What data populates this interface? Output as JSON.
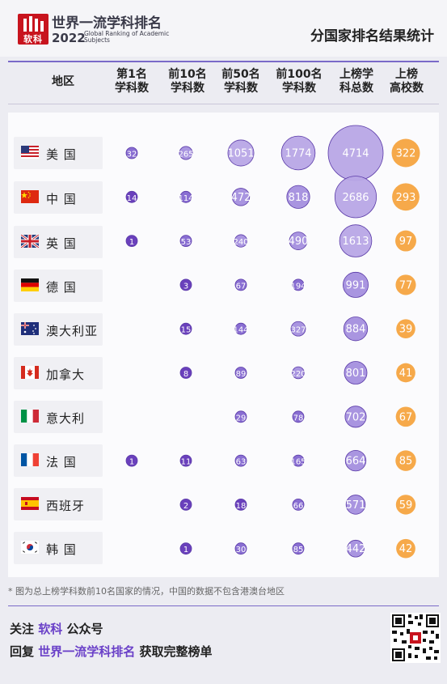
{
  "header": {
    "logo_mark": "软科",
    "logo_title": "世界一流学科排名",
    "logo_year": "2022",
    "logo_subtitle": "Global Ranking of Academic Subjects",
    "page_title": "分国家排名结果统计"
  },
  "table": {
    "columns": [
      {
        "line1": "地区",
        "line2": ""
      },
      {
        "line1": "第1名",
        "line2": "学科数"
      },
      {
        "line1": "前10名",
        "line2": "学科数"
      },
      {
        "line1": "前50名",
        "line2": "学科数"
      },
      {
        "line1": "前100名",
        "line2": "学科数"
      },
      {
        "line1": "上榜学",
        "line2": "科总数"
      },
      {
        "line1": "上榜",
        "line2": "高校数"
      }
    ],
    "rows": [
      {
        "name": "美 国",
        "flag": "us-flag-icon"
      },
      {
        "name": "中 国",
        "flag": "cn-flag-icon"
      },
      {
        "name": "英 国",
        "flag": "uk-flag-icon"
      },
      {
        "name": "德 国",
        "flag": "de-flag-icon"
      },
      {
        "name": "澳大利亚",
        "flag": "au-flag-icon"
      },
      {
        "name": "加拿大",
        "flag": "ca-flag-icon"
      },
      {
        "name": "意大利",
        "flag": "it-flag-icon"
      },
      {
        "name": "法 国",
        "flag": "fr-flag-icon"
      },
      {
        "name": "西班牙",
        "flag": "es-flag-icon"
      },
      {
        "name": "韩 国",
        "flag": "kr-flag-icon"
      }
    ]
  },
  "chart_data": {
    "type": "table",
    "subtype": "bubble-table",
    "categories": [
      "美国",
      "中国",
      "英国",
      "德国",
      "澳大利亚",
      "加拿大",
      "意大利",
      "法国",
      "西班牙",
      "韩国"
    ],
    "series": [
      {
        "name": "第1名学科数",
        "values": [
          32,
          14,
          1,
          null,
          null,
          null,
          null,
          1,
          null,
          null
        ]
      },
      {
        "name": "前10名学科数",
        "values": [
          265,
          114,
          53,
          3,
          15,
          8,
          null,
          11,
          2,
          1
        ]
      },
      {
        "name": "前50名学科数",
        "values": [
          1051,
          472,
          240,
          67,
          144,
          89,
          29,
          63,
          18,
          30
        ]
      },
      {
        "name": "前100名学科数",
        "values": [
          1774,
          818,
          490,
          194,
          327,
          220,
          78,
          165,
          66,
          85
        ]
      },
      {
        "name": "上榜学科总数",
        "values": [
          4714,
          2686,
          1613,
          991,
          884,
          801,
          702,
          664,
          571,
          442
        ]
      },
      {
        "name": "上榜高校数",
        "values": [
          322,
          293,
          97,
          77,
          39,
          41,
          67,
          85,
          59,
          42
        ]
      }
    ],
    "colors": {
      "dark": "#6236b8",
      "mid": "#8366d0",
      "light": "#a48fde",
      "lightest": "#b8a6e6",
      "orange": "#f6a94a",
      "stroke": "#5a3aa8"
    }
  },
  "footer": {
    "note": "* 图为总上榜学科数前10名国家的情况，中国的数据不包含港澳台地区",
    "line1_prefix": "关注",
    "line1_highlight": "软科",
    "line1_suffix": "公众号",
    "line2_prefix": "回复",
    "line2_highlight": "世界一流学科排名",
    "line2_suffix": "获取完整榜单"
  }
}
